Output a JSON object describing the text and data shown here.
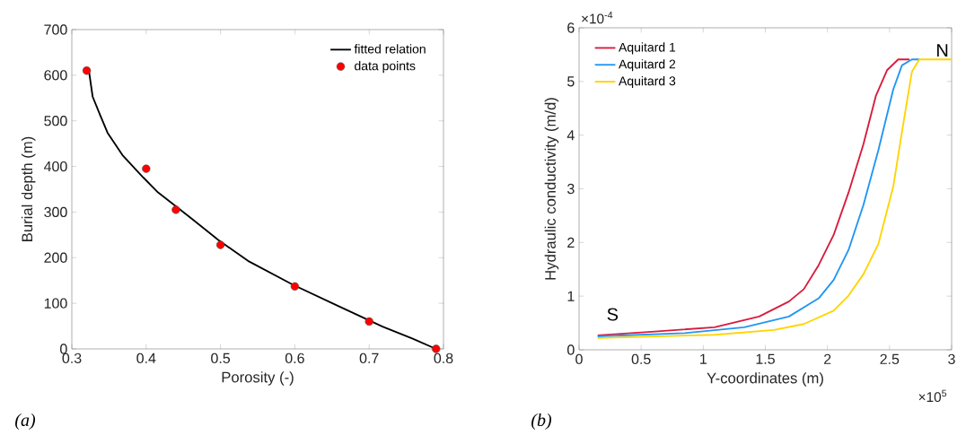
{
  "chart_data": [
    {
      "type": "line",
      "xlabel": "Porosity (-)",
      "ylabel": "Burial depth (m)",
      "xlim": [
        0.3,
        0.8
      ],
      "xticks": [
        0.3,
        0.4,
        0.5,
        0.6,
        0.7,
        0.8
      ],
      "ylim": [
        0,
        700
      ],
      "yticks": [
        0,
        100,
        200,
        300,
        400,
        500,
        600,
        700
      ],
      "legend": "top right",
      "grid": false,
      "annotations": [
        "(a)"
      ],
      "series": [
        {
          "name": "fitted relation",
          "type": "line",
          "color": "#000000",
          "marker": "none",
          "x": [
            0.323,
            0.328,
            0.338,
            0.348,
            0.368,
            0.396,
            0.416,
            0.457,
            0.497,
            0.537,
            0.597,
            0.657,
            0.718,
            0.758,
            0.79
          ],
          "values": [
            610,
            553,
            513,
            474,
            425,
            376,
            343,
            291,
            239,
            193,
            141,
            95,
            49,
            23,
            0
          ]
        },
        {
          "name": "data points",
          "type": "scatter",
          "color": "#ff0000",
          "marker": "circle",
          "x": [
            0.32,
            0.4,
            0.44,
            0.5,
            0.6,
            0.7,
            0.79
          ],
          "values": [
            610,
            395,
            305,
            228,
            137,
            60,
            0
          ]
        }
      ]
    },
    {
      "type": "line",
      "xlabel": "Y-coordinates (m)",
      "ylabel": "Hydraulic conductivity (m/d)",
      "xlim": [
        0,
        3
      ],
      "xticks": [
        0,
        0.5,
        1,
        1.5,
        2,
        2.5,
        3
      ],
      "ylim": [
        0,
        6
      ],
      "yticks": [
        0,
        1,
        2,
        3,
        4,
        5,
        6
      ],
      "legend": "top left",
      "grid": false,
      "marker": "none",
      "annotations": [
        "×10$^{-4}$",
        "×10$^{5}$",
        "S",
        "N",
        "(b)"
      ],
      "series": [
        {
          "name": "Aquitard 1",
          "color": "#d81b3c",
          "x": [
            0.15,
            0.61,
            1.09,
            1.45,
            1.69,
            1.81,
            1.93,
            2.05,
            2.17,
            2.29,
            2.39,
            2.48,
            2.57,
            2.66
          ],
          "values": [
            0.27,
            0.34,
            0.42,
            0.62,
            0.9,
            1.13,
            1.58,
            2.14,
            2.93,
            3.83,
            4.73,
            5.21,
            5.41,
            5.41
          ]
        },
        {
          "name": "Aquitard 2",
          "color": "#2196f3",
          "x": [
            0.15,
            0.85,
            1.33,
            1.69,
            1.93,
            2.05,
            2.17,
            2.29,
            2.41,
            2.53,
            2.6,
            2.68,
            2.74
          ],
          "values": [
            0.25,
            0.31,
            0.42,
            0.62,
            0.96,
            1.3,
            1.86,
            2.7,
            3.72,
            4.85,
            5.3,
            5.41,
            5.41
          ]
        },
        {
          "name": "Aquitard 3",
          "color": "#ffd400",
          "x": [
            0.15,
            1.09,
            1.57,
            1.81,
            2.05,
            2.17,
            2.29,
            2.41,
            2.53,
            2.6,
            2.68,
            2.74,
            3.0
          ],
          "values": [
            0.22,
            0.28,
            0.37,
            0.48,
            0.73,
            1.01,
            1.41,
            1.97,
            3.04,
            4.06,
            5.18,
            5.41,
            5.41
          ]
        }
      ]
    }
  ]
}
